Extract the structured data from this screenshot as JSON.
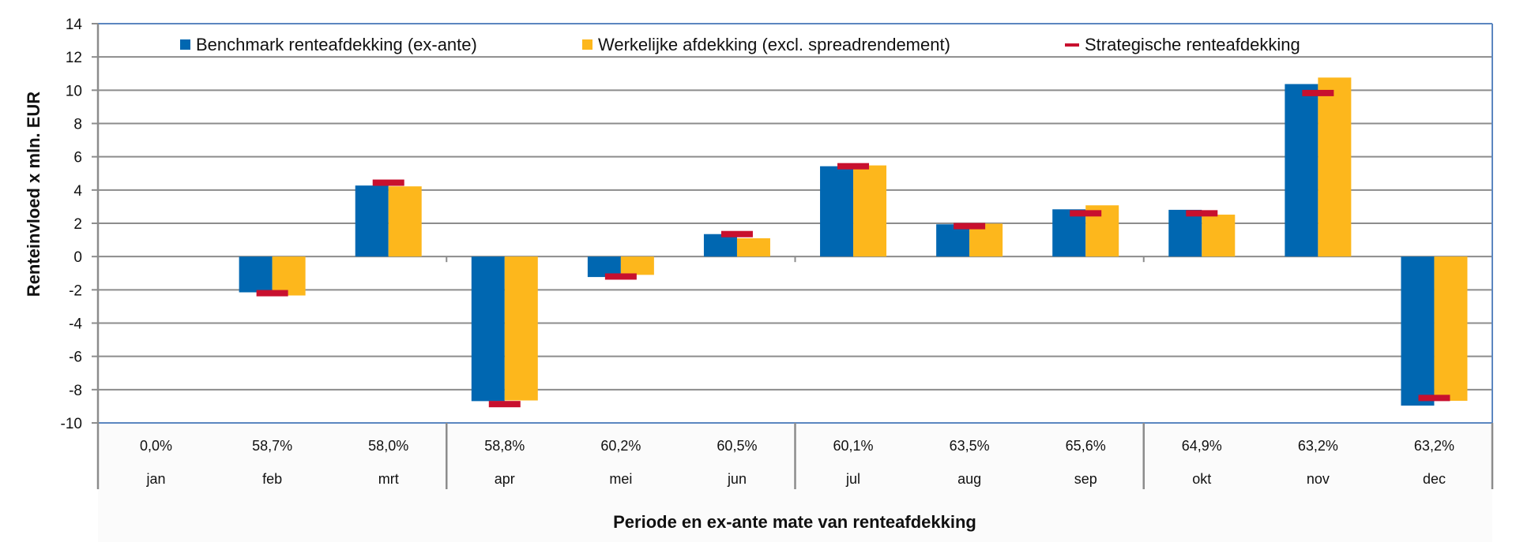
{
  "chart_data": {
    "type": "bar",
    "title": "",
    "xlabel": "Periode en ex-ante mate van renteafdekking",
    "ylabel": "Renteinvloed x mln. EUR",
    "ylim": [
      -10,
      14
    ],
    "yticks": [
      14,
      12,
      10,
      8,
      6,
      4,
      2,
      0,
      -2,
      -4,
      -6,
      -8,
      -10
    ],
    "grid": true,
    "legend_position": "top",
    "categories": [
      "jan",
      "feb",
      "mrt",
      "apr",
      "mei",
      "jun",
      "jul",
      "aug",
      "sep",
      "okt",
      "nov",
      "dec"
    ],
    "hedge_ratios": [
      "0,0%",
      "58,7%",
      "58,0%",
      "58,8%",
      "60,2%",
      "60,5%",
      "60,1%",
      "63,5%",
      "65,6%",
      "64,9%",
      "63,2%",
      "63,2%"
    ],
    "series": [
      {
        "name": "Benchmark renteafdekking (ex-ante)",
        "kind": "bar",
        "color": "#0067B1",
        "values": [
          0,
          -2.15,
          4.27,
          -8.69,
          -1.23,
          1.35,
          5.43,
          1.94,
          2.84,
          2.81,
          10.37,
          -8.96
        ]
      },
      {
        "name": "Werkelijke afdekking (excl. spreadrendement)",
        "kind": "bar",
        "color": "#FDB71C",
        "values": [
          0,
          -2.34,
          4.22,
          -8.65,
          -1.1,
          1.1,
          5.48,
          1.98,
          3.08,
          2.52,
          10.76,
          -8.67
        ]
      },
      {
        "name": "Strategische renteafdekking",
        "kind": "marker",
        "color": "#C8102E",
        "values": [
          null,
          -2.2,
          4.44,
          -8.87,
          -1.2,
          1.35,
          5.43,
          1.83,
          2.6,
          2.6,
          9.83,
          -8.5
        ]
      }
    ]
  },
  "colors": {
    "gridline": "#8c8c8c",
    "plot_border": "#5b86c0",
    "axis": "#8c8c8c"
  }
}
